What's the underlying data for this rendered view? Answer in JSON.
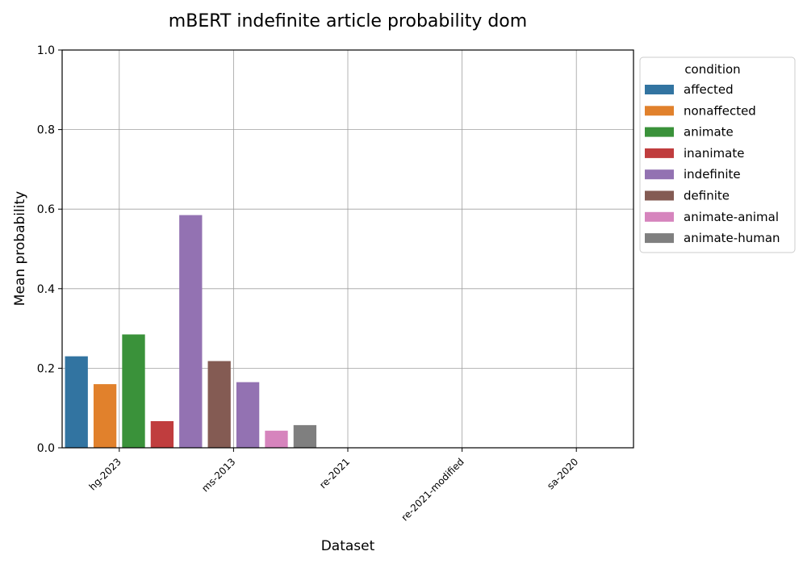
{
  "chart_data": {
    "type": "bar",
    "title": "mBERT indefinite article probability dom",
    "xlabel": "Dataset",
    "ylabel": "Mean probability",
    "ylim": [
      0,
      1.0
    ],
    "yticks": [
      "0.0",
      "0.2",
      "0.4",
      "0.6",
      "0.8",
      "1.0"
    ],
    "grid": true,
    "legend": {
      "title": "condition",
      "position": "outside-right",
      "entries": [
        {
          "name": "affected",
          "color": "#3274a1"
        },
        {
          "name": "nonaffected",
          "color": "#e1812c"
        },
        {
          "name": "animate",
          "color": "#3a923a"
        },
        {
          "name": "inanimate",
          "color": "#c03d3e"
        },
        {
          "name": "indefinite",
          "color": "#9372b2"
        },
        {
          "name": "definite",
          "color": "#845b53"
        },
        {
          "name": "animate-animal",
          "color": "#d684bd"
        },
        {
          "name": "animate-human",
          "color": "#7f7f7f"
        }
      ]
    },
    "categories": [
      "hg-2023",
      "ms-2013",
      "re-2021",
      "re-2021-modified",
      "sa-2020"
    ],
    "bars": [
      {
        "category": "hg-2023",
        "condition": "affected",
        "value": 0.23
      },
      {
        "category": "hg-2023",
        "condition": "nonaffected",
        "value": 0.16
      },
      {
        "category": "ms-2013",
        "condition": "animate",
        "value": 0.285
      },
      {
        "category": "ms-2013",
        "condition": "inanimate",
        "value": 0.067
      },
      {
        "category": "re-2021",
        "condition": "indefinite",
        "value": 0.585
      },
      {
        "category": "re-2021-modified",
        "condition": "definite",
        "value": 0.218
      },
      {
        "category": "re-2021-modified",
        "condition": "indefinite",
        "value": 0.165
      },
      {
        "category": "sa-2020",
        "condition": "animate-animal",
        "value": 0.043
      },
      {
        "category": "sa-2020",
        "condition": "animate-human",
        "value": 0.057
      }
    ]
  }
}
